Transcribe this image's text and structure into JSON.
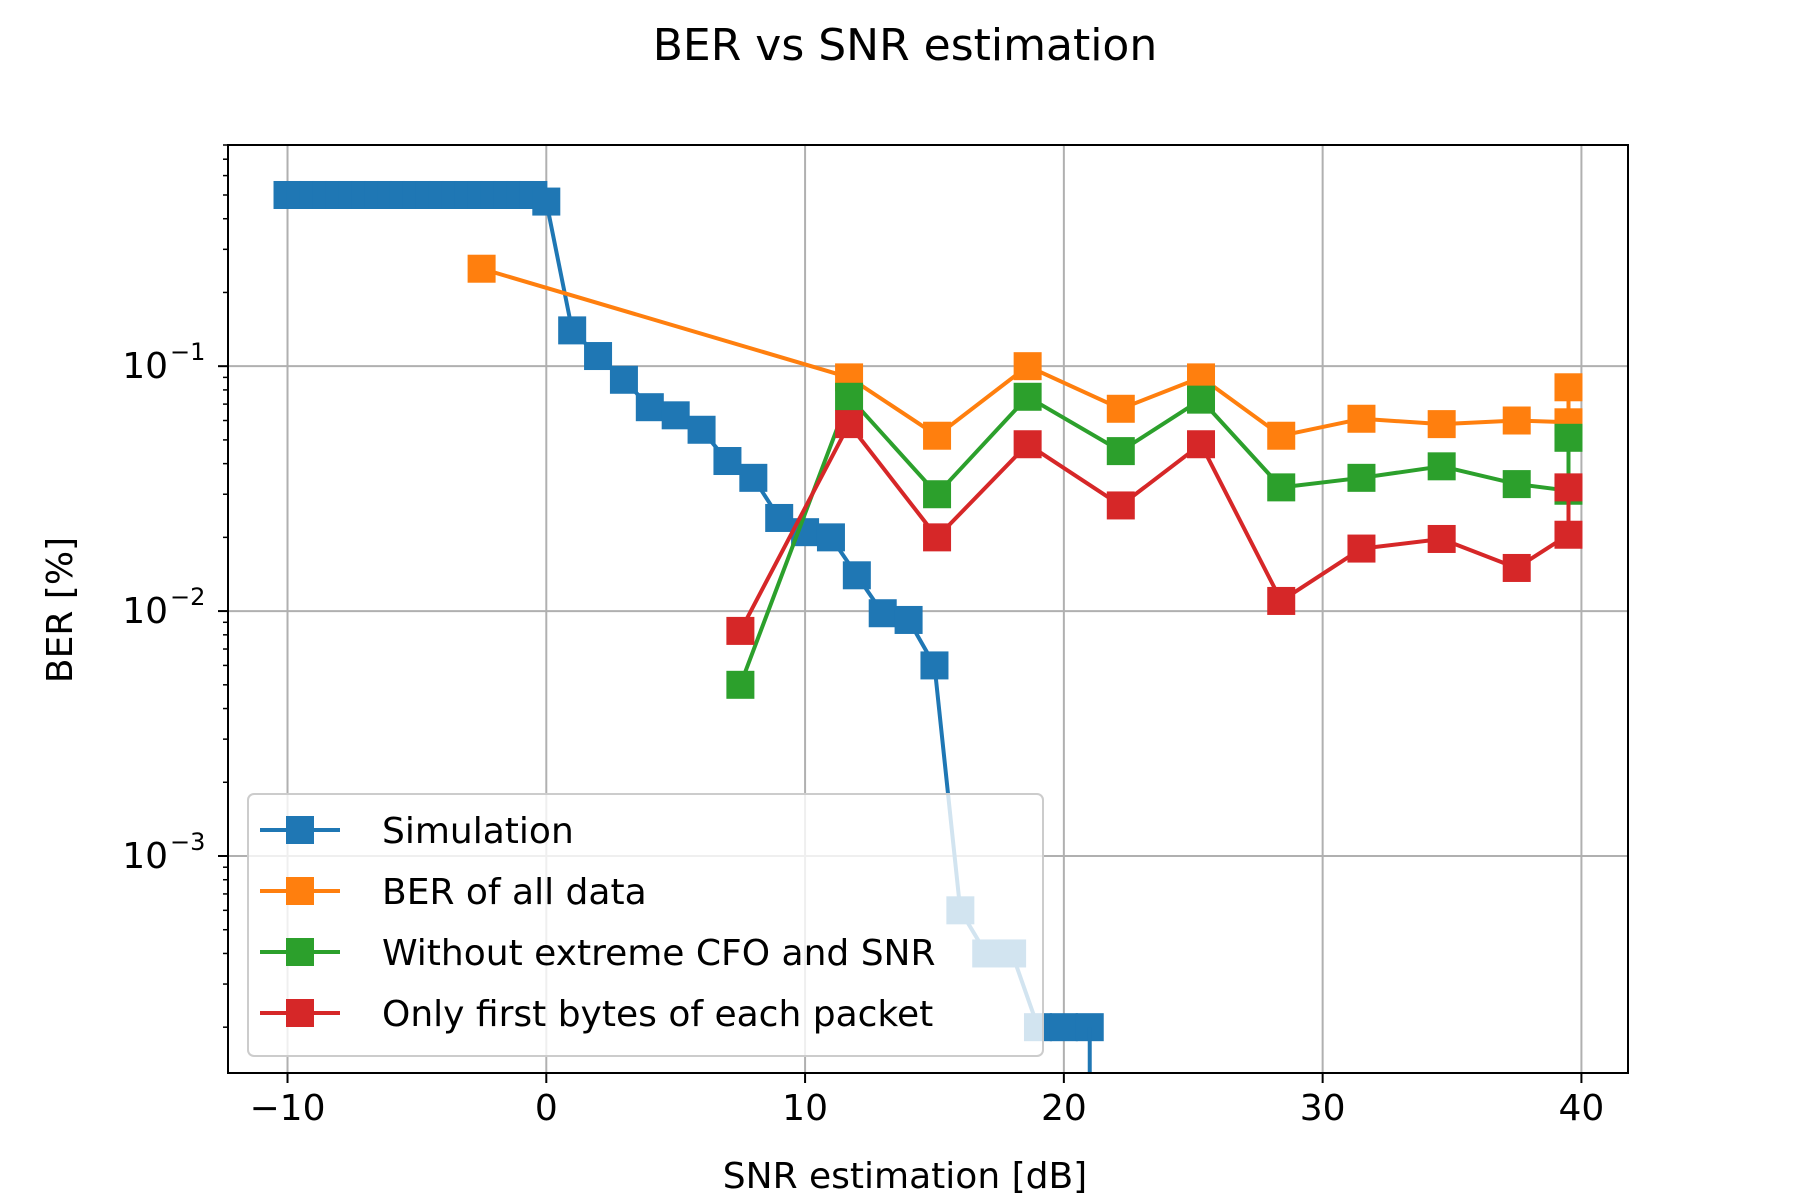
{
  "chart_data": {
    "type": "line",
    "title": "BER vs SNR estimation",
    "xlabel": "SNR estimation [dB]",
    "ylabel": "BER [%]",
    "xlim": [
      -12.3,
      41.8
    ],
    "ylim": [
      0.00013,
      0.8
    ],
    "yscale": "log",
    "grid": true,
    "legend_position": "lower-left",
    "x_ticks": [
      {
        "value": -10,
        "label": "−10"
      },
      {
        "value": 0,
        "label": "0"
      },
      {
        "value": 10,
        "label": "10"
      },
      {
        "value": 20,
        "label": "20"
      },
      {
        "value": 30,
        "label": "30"
      },
      {
        "value": 40,
        "label": "40"
      }
    ],
    "y_ticks": [
      {
        "value": 0.1,
        "base": "10",
        "exp": "−1"
      },
      {
        "value": 0.01,
        "base": "10",
        "exp": "−2"
      },
      {
        "value": 0.001,
        "base": "10",
        "exp": "−3"
      }
    ],
    "series": [
      {
        "name": "Simulation",
        "color": "#1f77b4",
        "x": [
          -10,
          -9.5,
          -9,
          -8.5,
          -8,
          -7.5,
          -7,
          -6.5,
          -6,
          -5.5,
          -5,
          -4.5,
          -4,
          -3.5,
          -3,
          -2.5,
          -2,
          -1.5,
          -1,
          -0.5,
          0,
          1,
          2,
          3,
          4,
          5,
          6,
          7,
          8,
          9,
          10,
          11,
          12,
          13,
          14,
          15,
          16,
          17,
          18,
          19,
          20,
          21
        ],
        "y": [
          0.5,
          0.5,
          0.5,
          0.5,
          0.5,
          0.5,
          0.5,
          0.5,
          0.5,
          0.5,
          0.5,
          0.5,
          0.5,
          0.5,
          0.5,
          0.5,
          0.5,
          0.5,
          0.5,
          0.5,
          0.47,
          0.14,
          0.11,
          0.088,
          0.068,
          0.063,
          0.055,
          0.041,
          0.035,
          0.024,
          0.021,
          0.02,
          0.014,
          0.0098,
          0.0092,
          0.006,
          0.0006,
          0.0004,
          0.0004,
          0.0002,
          0.0002,
          0.0002
        ]
      },
      {
        "name": "BER of all data",
        "color": "#ff7f0e",
        "x": [
          -2.5,
          11.7,
          15.1,
          18.6,
          22.2,
          25.3,
          28.4,
          31.5,
          34.6,
          37.5,
          39.5,
          39.5
        ],
        "y": [
          0.25,
          0.09,
          0.052,
          0.1,
          0.067,
          0.09,
          0.052,
          0.061,
          0.058,
          0.06,
          0.059,
          0.082
        ]
      },
      {
        "name": "Without extreme CFO and SNR",
        "color": "#2ca02c",
        "x": [
          7.5,
          11.7,
          15.1,
          18.6,
          22.2,
          25.3,
          28.4,
          31.5,
          34.6,
          37.5,
          39.5,
          39.5
        ],
        "y": [
          0.005,
          0.075,
          0.03,
          0.075,
          0.045,
          0.073,
          0.032,
          0.035,
          0.039,
          0.033,
          0.031,
          0.051
        ]
      },
      {
        "name": "Only first bytes of each packet",
        "color": "#d62728",
        "x": [
          7.5,
          11.7,
          15.1,
          18.6,
          22.2,
          25.3,
          28.4,
          31.5,
          34.6,
          37.5,
          39.5,
          39.5
        ],
        "y": [
          0.0083,
          0.058,
          0.02,
          0.048,
          0.027,
          0.048,
          0.011,
          0.018,
          0.0197,
          0.015,
          0.0205,
          0.032
        ]
      }
    ]
  }
}
